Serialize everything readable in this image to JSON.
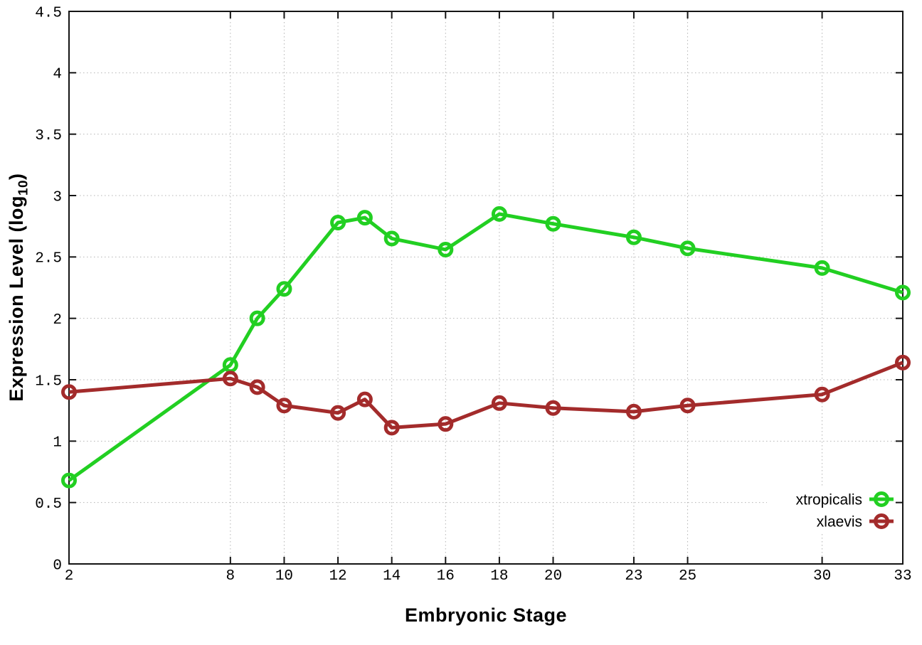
{
  "chart_data": {
    "type": "line",
    "title": "",
    "xlabel": "Embryonic Stage",
    "ylabel": {
      "main": "Expression Level (log",
      "sub": "10",
      "end": ")"
    },
    "xlim": [
      2,
      33
    ],
    "ylim": [
      0,
      4.5
    ],
    "x_ticks": [
      2,
      8,
      10,
      12,
      14,
      16,
      18,
      20,
      23,
      25,
      30,
      33
    ],
    "y_ticks": [
      0,
      0.5,
      1,
      1.5,
      2,
      2.5,
      3,
      3.5,
      4,
      4.5
    ],
    "grid": true,
    "legend_position": "bottom-right",
    "x": [
      2,
      8,
      9,
      10,
      12,
      13,
      14,
      16,
      18,
      20,
      23,
      25,
      30,
      33
    ],
    "series": [
      {
        "name": "xtropicalis",
        "color": "#22cf22",
        "values": [
          0.68,
          1.62,
          2.0,
          2.24,
          2.78,
          2.82,
          2.65,
          2.56,
          2.85,
          2.77,
          2.66,
          2.57,
          2.41,
          2.21
        ]
      },
      {
        "name": "xlaevis",
        "color": "#a32b2b",
        "values": [
          1.4,
          1.51,
          1.44,
          1.29,
          1.23,
          1.34,
          1.11,
          1.14,
          1.31,
          1.27,
          1.24,
          1.29,
          1.38,
          1.64
        ]
      }
    ]
  },
  "styles": {
    "grid_color": "#b4b4b4",
    "axis_color": "#141414",
    "text_color": "#000000",
    "background": "#ffffff"
  }
}
